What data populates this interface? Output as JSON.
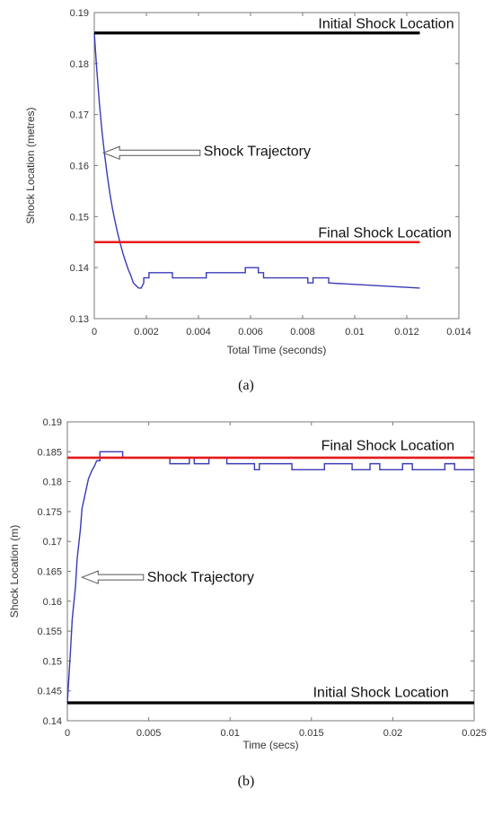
{
  "chart_data": [
    {
      "type": "line",
      "caption": "(a)",
      "xlabel": "Total Time (seconds)",
      "ylabel": "Shock Location (metres)",
      "xlim": [
        0,
        0.014
      ],
      "ylim": [
        0.13,
        0.19
      ],
      "xticks": [
        "0",
        "0.002",
        "0.004",
        "0.006",
        "0.008",
        "0.01",
        "0.012",
        "0.014"
      ],
      "yticks": [
        "0.13",
        "0.14",
        "0.15",
        "0.16",
        "0.17",
        "0.18",
        "0.19"
      ],
      "grid": false,
      "series": [
        {
          "color": "#3a3ab8",
          "x": [
            0,
            0.0001,
            0.0002,
            0.0003,
            0.0004,
            0.0005,
            0.0006,
            0.0007,
            0.0008,
            0.0009,
            0.001,
            0.0011,
            0.0012,
            0.0013,
            0.0014,
            0.0015,
            0.0017,
            0.0018,
            0.0019,
            0.0019,
            0.0021,
            0.0021,
            0.003,
            0.003,
            0.0043,
            0.0043,
            0.0053,
            0.0053,
            0.0058,
            0.0058,
            0.0063,
            0.0063,
            0.0065,
            0.0065,
            0.0082,
            0.0082,
            0.0084,
            0.0084,
            0.009,
            0.009,
            0.0125
          ],
          "y": [
            0.186,
            0.1785,
            0.172,
            0.1665,
            0.162,
            0.158,
            0.1545,
            0.1515,
            0.149,
            0.1467,
            0.1447,
            0.1428,
            0.1412,
            0.1397,
            0.1385,
            0.137,
            0.136,
            0.136,
            0.137,
            0.138,
            0.138,
            0.139,
            0.139,
            0.138,
            0.138,
            0.139,
            0.139,
            0.139,
            0.139,
            0.14,
            0.14,
            0.139,
            0.139,
            0.138,
            0.138,
            0.137,
            0.137,
            0.138,
            0.138,
            0.137,
            0.136
          ]
        },
        {
          "color": "#000000",
          "x": [
            0,
            0.0125
          ],
          "y": [
            0.186,
            0.186
          ]
        },
        {
          "color": "#e51a1a",
          "x": [
            0,
            0.0125
          ],
          "y": [
            0.145,
            0.145
          ]
        }
      ],
      "annotations": [
        {
          "text": "Initial Shock Location",
          "x": 0.0086,
          "y": 0.188
        },
        {
          "text": "Final Shock Location",
          "x": 0.0086,
          "y": 0.147
        },
        {
          "text": "Shock Trajectory",
          "x": 0.0042,
          "y": 0.163,
          "arrow_to": [
            0.00035,
            0.1625
          ]
        }
      ]
    },
    {
      "type": "line",
      "caption": "(b)",
      "xlabel": "Time (secs)",
      "ylabel": "Shock Location (m)",
      "xlim": [
        0,
        0.025
      ],
      "ylim": [
        0.14,
        0.19
      ],
      "xticks": [
        "0",
        "0.005",
        "0.01",
        "0.015",
        "0.02",
        "0.025"
      ],
      "yticks": [
        "0.14",
        "0.145",
        "0.15",
        "0.155",
        "0.16",
        "0.165",
        "0.17",
        "0.175",
        "0.18",
        "0.185",
        "0.19"
      ],
      "grid": false,
      "series": [
        {
          "color": "#3a3ab8",
          "x": [
            0,
            0.0002,
            0.0003,
            0.0005,
            0.0006,
            0.0008,
            0.0009,
            0.0011,
            0.0013,
            0.0015,
            0.0017,
            0.0018,
            0.002,
            0.002,
            0.0034,
            0.0034,
            0.0063,
            0.0063,
            0.0075,
            0.0075,
            0.0078,
            0.0078,
            0.0087,
            0.0087,
            0.0098,
            0.0098,
            0.0115,
            0.0115,
            0.0118,
            0.0118,
            0.0138,
            0.0138,
            0.0158,
            0.0158,
            0.0175,
            0.0175,
            0.0186,
            0.0186,
            0.0192,
            0.0192,
            0.0206,
            0.0206,
            0.0212,
            0.0212,
            0.0232,
            0.0232,
            0.0238,
            0.0238,
            0.025
          ],
          "y": [
            0.143,
            0.152,
            0.157,
            0.1625,
            0.167,
            0.172,
            0.1755,
            0.178,
            0.1805,
            0.1818,
            0.1828,
            0.1835,
            0.1835,
            0.185,
            0.185,
            0.184,
            0.184,
            0.183,
            0.183,
            0.184,
            0.184,
            0.183,
            0.183,
            0.184,
            0.184,
            0.183,
            0.183,
            0.182,
            0.182,
            0.183,
            0.183,
            0.182,
            0.182,
            0.183,
            0.183,
            0.182,
            0.182,
            0.183,
            0.183,
            0.182,
            0.182,
            0.183,
            0.183,
            0.182,
            0.182,
            0.183,
            0.183,
            0.182,
            0.182
          ]
        },
        {
          "color": "#e51a1a",
          "x": [
            0,
            0.025
          ],
          "y": [
            0.184,
            0.184
          ]
        },
        {
          "color": "#000000",
          "x": [
            0,
            0.025
          ],
          "y": [
            0.143,
            0.143
          ]
        }
      ],
      "annotations": [
        {
          "text": "Final Shock Location",
          "x": 0.0156,
          "y": 0.1862
        },
        {
          "text": "Initial Shock Location",
          "x": 0.0151,
          "y": 0.1449
        },
        {
          "text": "Shock Trajectory",
          "x": 0.0049,
          "y": 0.1642,
          "arrow_to": [
            0.0009,
            0.164
          ]
        }
      ]
    }
  ]
}
